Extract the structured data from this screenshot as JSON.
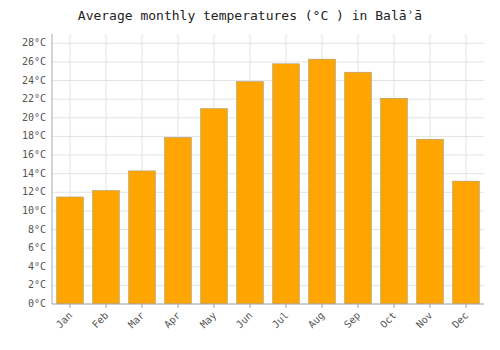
{
  "chart_data": {
    "type": "bar",
    "title": "Average monthly temperatures (°C ) in Balāʾā",
    "categories": [
      "Jan",
      "Feb",
      "Mar",
      "Apr",
      "May",
      "Jun",
      "Jul",
      "Aug",
      "Sep",
      "Oct",
      "Nov",
      "Dec"
    ],
    "values": [
      11.5,
      12.2,
      14.3,
      17.9,
      21.0,
      23.9,
      25.8,
      26.3,
      24.9,
      22.1,
      17.7,
      13.2
    ],
    "color": "#FFA500",
    "ylim": [
      0,
      29
    ],
    "yticks": [
      {
        "value": 0,
        "label": "0°C"
      },
      {
        "value": 2,
        "label": "2°C"
      },
      {
        "value": 4,
        "label": "4°C"
      },
      {
        "value": 6,
        "label": "6°C"
      },
      {
        "value": 8,
        "label": "8°C"
      },
      {
        "value": 10,
        "label": "10°C"
      },
      {
        "value": 12,
        "label": "12°C"
      },
      {
        "value": 14,
        "label": "14°C"
      },
      {
        "value": 16,
        "label": "16°C"
      },
      {
        "value": 18,
        "label": "18°C"
      },
      {
        "value": 20,
        "label": "20°C"
      },
      {
        "value": 22,
        "label": "22°C"
      },
      {
        "value": 24,
        "label": "24°C"
      },
      {
        "value": 26,
        "label": "26°C"
      },
      {
        "value": 28,
        "label": "28°C"
      }
    ],
    "grid": true
  }
}
